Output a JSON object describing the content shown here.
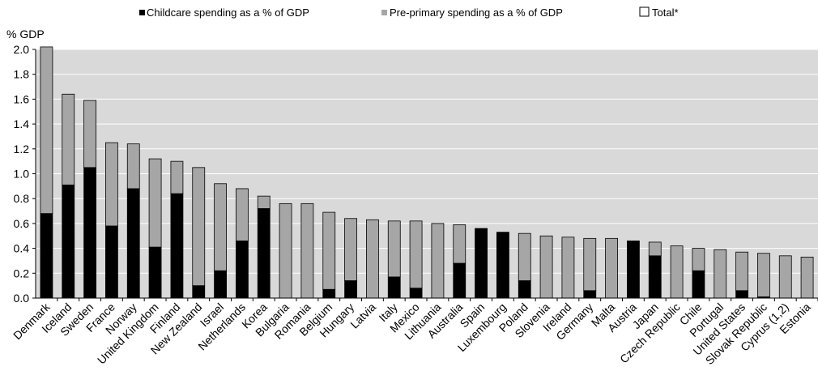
{
  "chart_data": {
    "type": "bar",
    "stacked": true,
    "ylabel": "% GDP",
    "ylim": [
      0,
      2.0
    ],
    "yticks": [
      "0.0",
      "0.2",
      "0.4",
      "0.6",
      "0.8",
      "1.0",
      "1.2",
      "1.4",
      "1.6",
      "1.8",
      "2.0"
    ],
    "grid": true,
    "legend_position": "top",
    "legend": [
      {
        "label": "Childcare spending as a % of GDP",
        "color": "#000000"
      },
      {
        "label": "Pre-primary spending as a % of GDP",
        "color": "#a6a6a6"
      },
      {
        "label": "Total*",
        "color": "#ffffff"
      }
    ],
    "colors": {
      "plot_bg": "#d9d9d9",
      "childcare": "#000000",
      "preprimary": "#a6a6a6",
      "grid": "#ffffff"
    },
    "categories": [
      "Denmark",
      "Iceland",
      "Sweden",
      "France",
      "Norway",
      "United Kingdom",
      "Finland",
      "New Zealand",
      "Israel",
      "Netherlands",
      "Korea",
      "Bulgaria",
      "Romania",
      "Belgium",
      "Hungary",
      "Latvia",
      "Italy",
      "Mexico",
      "Lithuania",
      "Australia",
      "Spain",
      "Luxembourg",
      "Poland",
      "Slovenia",
      "Ireland",
      "Germany",
      "Malta",
      "Austria",
      "Japan",
      "Czech Republic",
      "Chile",
      "Portugal",
      "United States",
      "Slovak Republic",
      "Cyprus (1,2)",
      "Estonia"
    ],
    "series": [
      {
        "name": "Childcare spending as a % of GDP",
        "values": [
          0.68,
          0.91,
          1.05,
          0.58,
          0.88,
          0.41,
          0.84,
          0.1,
          0.22,
          0.46,
          0.72,
          0,
          0,
          0.07,
          0.14,
          0,
          0.17,
          0.08,
          0,
          0.28,
          0.56,
          0.53,
          0.14,
          0,
          0,
          0.06,
          0,
          0.46,
          0.34,
          0,
          0.22,
          0,
          0.06,
          0.01,
          0,
          0
        ]
      },
      {
        "name": "Pre-primary spending as a % of GDP",
        "values": [
          1.34,
          0.73,
          0.54,
          0.67,
          0.36,
          0.71,
          0.26,
          0.95,
          0.7,
          0.42,
          0.1,
          0.76,
          0.76,
          0.62,
          0.5,
          0.63,
          0.45,
          0.54,
          0.6,
          0.31,
          0,
          0,
          0.38,
          0.5,
          0.49,
          0.42,
          0.48,
          0,
          0.11,
          0.42,
          0.18,
          0.39,
          0.31,
          0.35,
          0.34,
          0.33
        ]
      }
    ]
  }
}
